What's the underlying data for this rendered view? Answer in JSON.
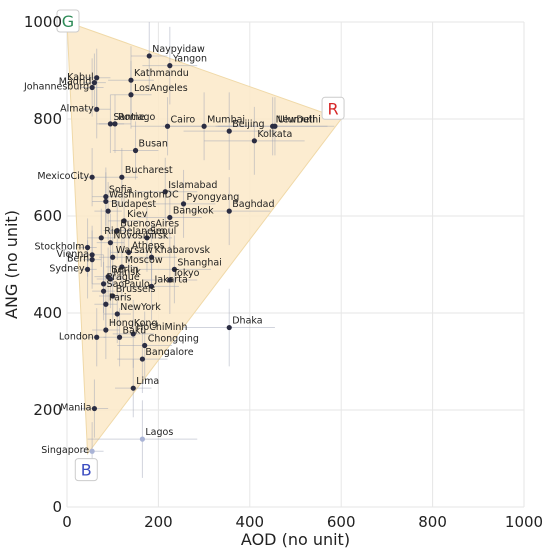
{
  "chart_data": {
    "type": "scatter",
    "title": "",
    "xlabel": "AOD (no unit)",
    "ylabel": "ANG (no unit)",
    "xlim": [
      0,
      1000
    ],
    "ylim": [
      0,
      1000
    ],
    "x_ticks": [
      "0",
      "200",
      "400",
      "600",
      "800",
      "1000"
    ],
    "y_ticks": [
      "0",
      "200",
      "400",
      "600",
      "800",
      "1000"
    ],
    "grid": true,
    "triangle": {
      "vertices": [
        [
          0,
          1000
        ],
        [
          600,
          800
        ],
        [
          45,
          110
        ]
      ],
      "fill": "#fbe9c8"
    },
    "corners": [
      {
        "label": "G",
        "x": 0,
        "y": 1000,
        "color": "#2e8b57"
      },
      {
        "label": "R",
        "x": 580,
        "y": 820,
        "color": "#d62728"
      },
      {
        "label": "B",
        "x": 40,
        "y": 75,
        "color": "#3b4cc0"
      }
    ],
    "points": [
      {
        "name": "Naypyidaw",
        "x": 180,
        "y": 930,
        "ex": 40,
        "ey": 70
      },
      {
        "name": "Yangon",
        "x": 225,
        "y": 910,
        "ex": 60,
        "ey": 80
      },
      {
        "name": "Kabul",
        "x": 65,
        "y": 885,
        "ex": 30,
        "ey": 60
      },
      {
        "name": "Kathmandu",
        "x": 140,
        "y": 880,
        "ex": 50,
        "ey": 70
      },
      {
        "name": "Madrid",
        "x": 60,
        "y": 875,
        "ex": 25,
        "ey": 60
      },
      {
        "name": "Johannesburg",
        "x": 55,
        "y": 865,
        "ex": 25,
        "ey": 60
      },
      {
        "name": "LosAngeles",
        "x": 140,
        "y": 850,
        "ex": 45,
        "ey": 70
      },
      {
        "name": "Almaty",
        "x": 65,
        "y": 820,
        "ex": 30,
        "ey": 60
      },
      {
        "name": "Santiago",
        "x": 95,
        "y": 790,
        "ex": 30,
        "ey": 60
      },
      {
        "name": "Rome",
        "x": 105,
        "y": 790,
        "ex": 35,
        "ey": 60
      },
      {
        "name": "Cairo",
        "x": 220,
        "y": 785,
        "ex": 80,
        "ey": 60
      },
      {
        "name": "Mumbai",
        "x": 300,
        "y": 785,
        "ex": 90,
        "ey": 70
      },
      {
        "name": "Beijing",
        "x": 355,
        "y": 775,
        "ex": 100,
        "ey": 80
      },
      {
        "name": "NewDelhi",
        "x": 450,
        "y": 785,
        "ex": 120,
        "ey": 60
      },
      {
        "name": "Ulumuti",
        "x": 455,
        "y": 785,
        "ex": 130,
        "ey": 60
      },
      {
        "name": "Kolkata",
        "x": 410,
        "y": 755,
        "ex": 110,
        "ey": 70
      },
      {
        "name": "Busan",
        "x": 150,
        "y": 735,
        "ex": 50,
        "ey": 60
      },
      {
        "name": "MexicoCity",
        "x": 55,
        "y": 680,
        "ex": 30,
        "ey": 60
      },
      {
        "name": "Bucharest",
        "x": 120,
        "y": 680,
        "ex": 35,
        "ey": 60
      },
      {
        "name": "Islamabad",
        "x": 215,
        "y": 650,
        "ex": 70,
        "ey": 70
      },
      {
        "name": "Sofia",
        "x": 85,
        "y": 640,
        "ex": 30,
        "ey": 60
      },
      {
        "name": "WashingtonDC",
        "x": 85,
        "y": 630,
        "ex": 30,
        "ey": 60
      },
      {
        "name": "Pyongyang",
        "x": 255,
        "y": 625,
        "ex": 70,
        "ey": 70
      },
      {
        "name": "Baghdad",
        "x": 355,
        "y": 610,
        "ex": 90,
        "ey": 70
      },
      {
        "name": "Budapest",
        "x": 90,
        "y": 610,
        "ex": 30,
        "ey": 60
      },
      {
        "name": "Bangkok",
        "x": 225,
        "y": 597,
        "ex": 70,
        "ey": 70
      },
      {
        "name": "Kiev",
        "x": 125,
        "y": 590,
        "ex": 35,
        "ey": 60
      },
      {
        "name": "BuenosAires",
        "x": 110,
        "y": 570,
        "ex": 30,
        "ey": 60
      },
      {
        "name": "RioDeJaneiro",
        "x": 75,
        "y": 555,
        "ex": 30,
        "ey": 60
      },
      {
        "name": "Seoul",
        "x": 175,
        "y": 555,
        "ex": 55,
        "ey": 70
      },
      {
        "name": "Novosibirsk",
        "x": 95,
        "y": 545,
        "ex": 30,
        "ey": 60
      },
      {
        "name": "Stockholm",
        "x": 45,
        "y": 535,
        "ex": 20,
        "ey": 60
      },
      {
        "name": "Athens",
        "x": 135,
        "y": 525,
        "ex": 40,
        "ey": 60
      },
      {
        "name": "Vienna",
        "x": 55,
        "y": 520,
        "ex": 25,
        "ey": 60
      },
      {
        "name": "Warsaw",
        "x": 100,
        "y": 515,
        "ex": 30,
        "ey": 60
      },
      {
        "name": "Khabarovsk",
        "x": 185,
        "y": 515,
        "ex": 55,
        "ey": 70
      },
      {
        "name": "Bern",
        "x": 55,
        "y": 510,
        "ex": 20,
        "ey": 60
      },
      {
        "name": "Moscow",
        "x": 120,
        "y": 495,
        "ex": 35,
        "ey": 60
      },
      {
        "name": "Sydney",
        "x": 45,
        "y": 490,
        "ex": 20,
        "ey": 60
      },
      {
        "name": "Shanghai",
        "x": 235,
        "y": 490,
        "ex": 80,
        "ey": 70
      },
      {
        "name": "Berlin",
        "x": 90,
        "y": 475,
        "ex": 30,
        "ey": 60
      },
      {
        "name": "Minsk",
        "x": 95,
        "y": 470,
        "ex": 30,
        "ey": 60
      },
      {
        "name": "Prague",
        "x": 80,
        "y": 460,
        "ex": 25,
        "ey": 60
      },
      {
        "name": "Tokyo",
        "x": 225,
        "y": 468,
        "ex": 60,
        "ey": 70
      },
      {
        "name": "Jakarta",
        "x": 185,
        "y": 455,
        "ex": 60,
        "ey": 70
      },
      {
        "name": "SaoPaulo",
        "x": 80,
        "y": 445,
        "ex": 25,
        "ey": 60
      },
      {
        "name": "Brussels",
        "x": 100,
        "y": 435,
        "ex": 30,
        "ey": 60
      },
      {
        "name": "Paris",
        "x": 85,
        "y": 418,
        "ex": 25,
        "ey": 60
      },
      {
        "name": "NewYork",
        "x": 110,
        "y": 398,
        "ex": 30,
        "ey": 60
      },
      {
        "name": "Dhaka",
        "x": 355,
        "y": 370,
        "ex": 100,
        "ey": 80
      },
      {
        "name": "HongKong",
        "x": 85,
        "y": 365,
        "ex": 30,
        "ey": 60
      },
      {
        "name": "HoChiMinh",
        "x": 145,
        "y": 357,
        "ex": 45,
        "ey": 70
      },
      {
        "name": "London",
        "x": 65,
        "y": 350,
        "ex": 20,
        "ey": 60
      },
      {
        "name": "Baku",
        "x": 115,
        "y": 350,
        "ex": 35,
        "ey": 60
      },
      {
        "name": "Chongqing",
        "x": 170,
        "y": 333,
        "ex": 60,
        "ey": 70
      },
      {
        "name": "Bangalore",
        "x": 165,
        "y": 305,
        "ex": 55,
        "ey": 70
      },
      {
        "name": "Lima",
        "x": 145,
        "y": 245,
        "ex": 40,
        "ey": 60
      },
      {
        "name": "Manila",
        "x": 60,
        "y": 203,
        "ex": 30,
        "ey": 60
      },
      {
        "name": "Lagos",
        "x": 165,
        "y": 140,
        "ex": 120,
        "ey": 80
      },
      {
        "name": "Singapore",
        "x": 55,
        "y": 115,
        "ex": 25,
        "ey": 60
      }
    ]
  }
}
